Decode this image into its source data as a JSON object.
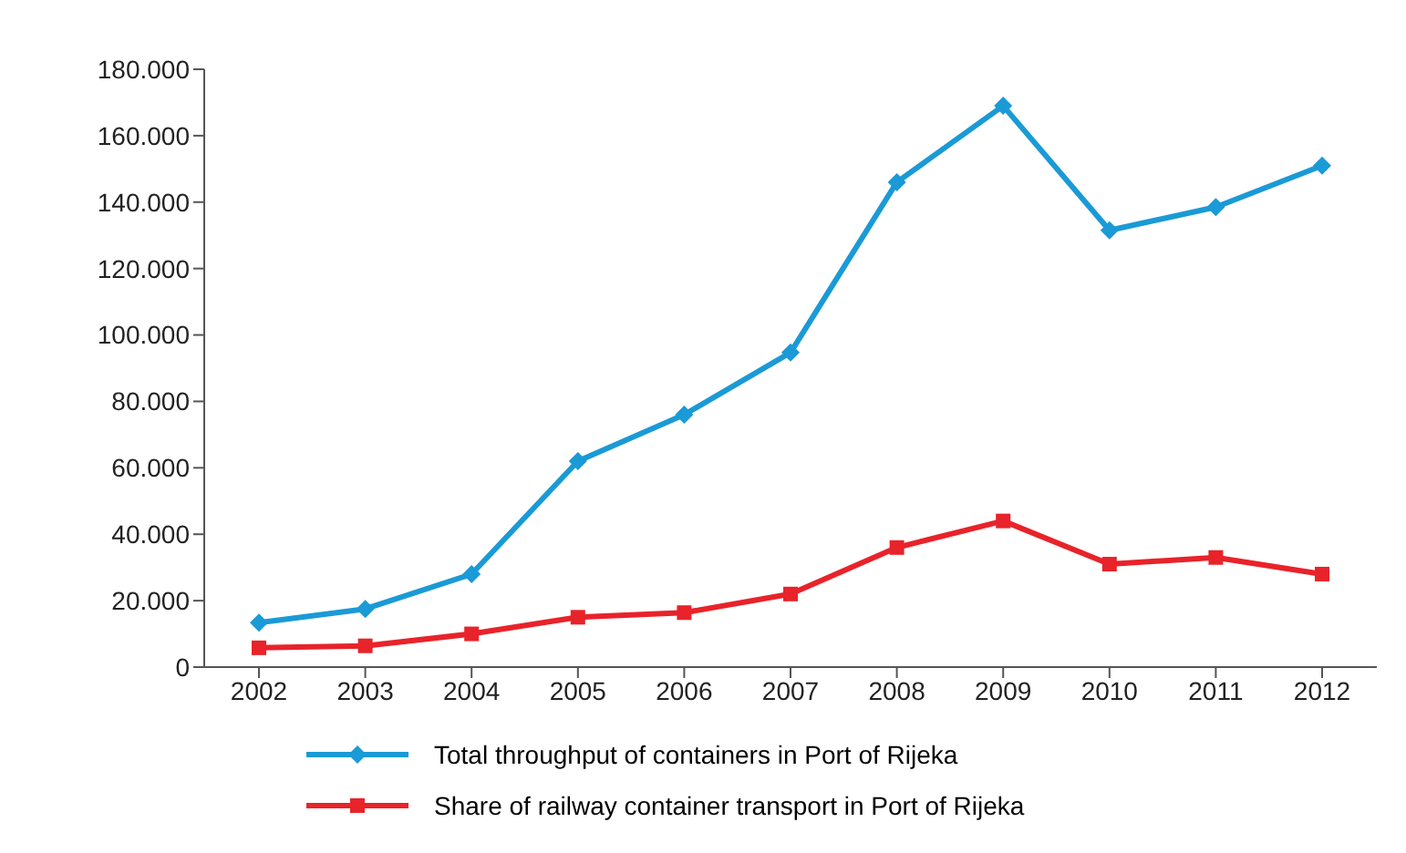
{
  "chart_data": {
    "type": "line",
    "categories": [
      "2002",
      "2003",
      "2004",
      "2005",
      "2006",
      "2007",
      "2008",
      "2009",
      "2010",
      "2011",
      "2012"
    ],
    "series": [
      {
        "name": "Total throughput of containers in Port of Rijeka",
        "color": "#1a9ad6",
        "marker": "diamond",
        "values": [
          13400,
          17500,
          28000,
          62000,
          76000,
          94700,
          146000,
          169000,
          131500,
          138500,
          151000
        ]
      },
      {
        "name": "Share of railway container transport in Port of Rijeka",
        "color": "#e8232a",
        "marker": "square",
        "values": [
          5800,
          6400,
          10000,
          15000,
          16400,
          22000,
          36000,
          44000,
          31000,
          33000,
          28000
        ]
      }
    ],
    "ylim": [
      0,
      180000
    ],
    "yticks": [
      {
        "value": 0,
        "label": "0"
      },
      {
        "value": 20000,
        "label": "20.000"
      },
      {
        "value": 40000,
        "label": "40.000"
      },
      {
        "value": 60000,
        "label": "60.000"
      },
      {
        "value": 80000,
        "label": "80.000"
      },
      {
        "value": 100000,
        "label": "100.000"
      },
      {
        "value": 120000,
        "label": "120.000"
      },
      {
        "value": 140000,
        "label": "140.000"
      },
      {
        "value": 160000,
        "label": "160.000"
      },
      {
        "value": 180000,
        "label": "180.000"
      }
    ],
    "grid": false,
    "legend": "bottom",
    "line_style": "solid"
  }
}
